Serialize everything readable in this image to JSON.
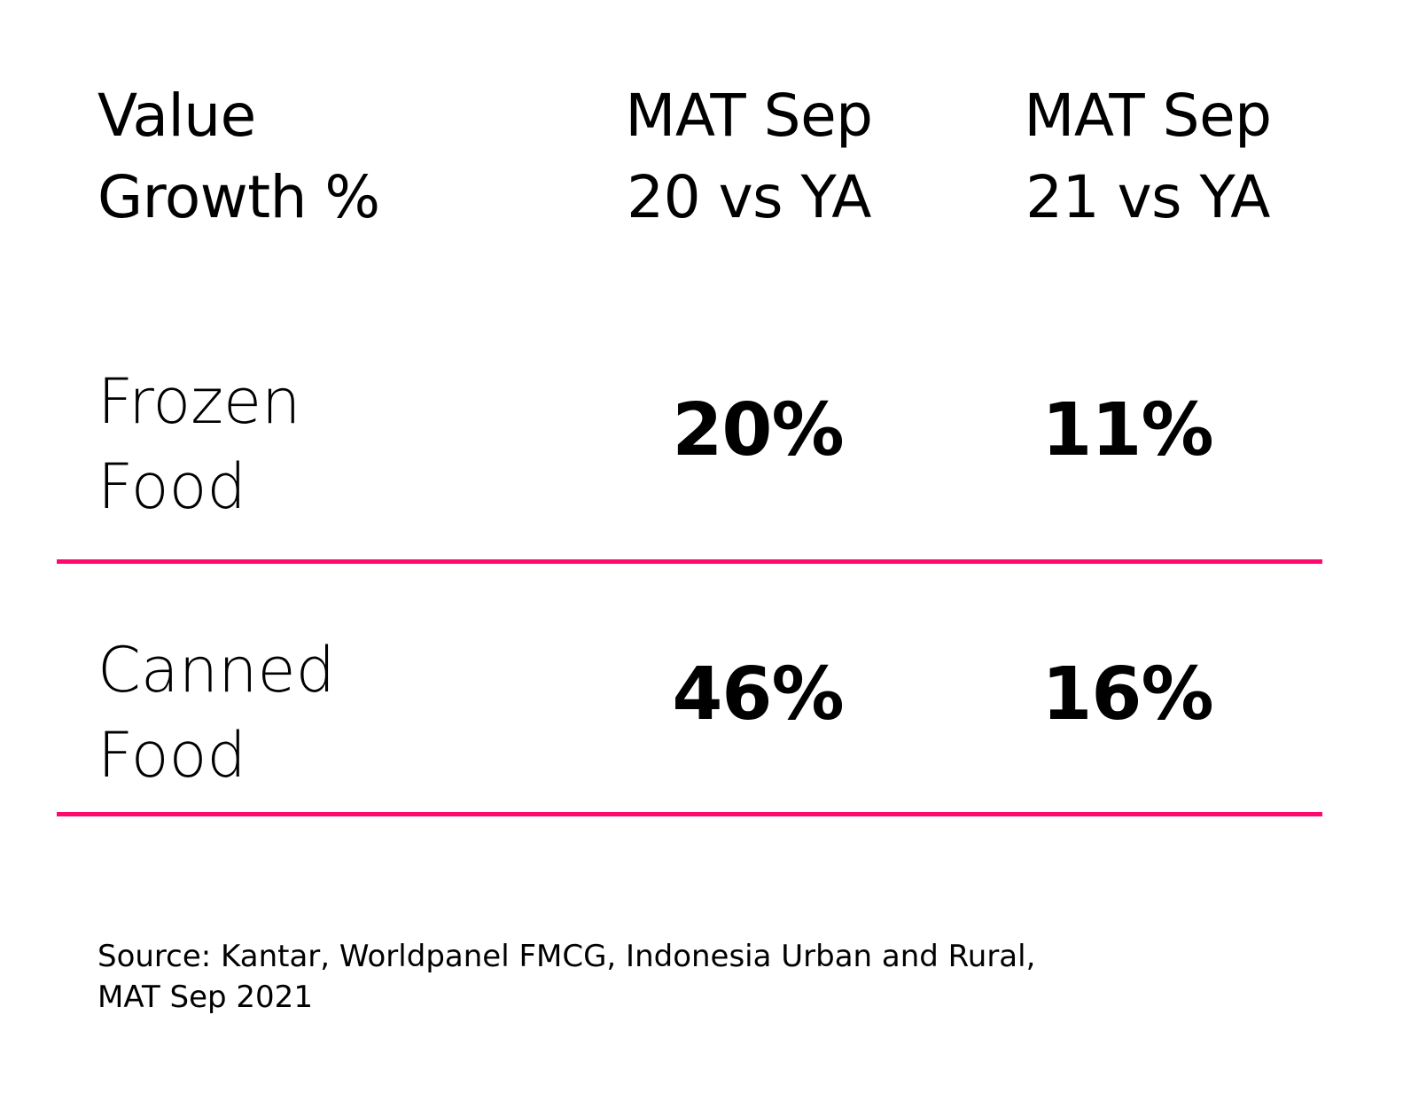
{
  "colors": {
    "accent": "#ff0a6c",
    "text": "#000000",
    "background": "#ffffff"
  },
  "header": {
    "label_line1": "Value",
    "label_line2": "Growth %",
    "col1_line1": "MAT Sep",
    "col1_line2": "20 vs YA",
    "col2_line1": "MAT Sep",
    "col2_line2": "21 vs YA"
  },
  "rows": [
    {
      "label_line1": "Frozen",
      "label_line2": "Food",
      "col1": "20%",
      "col2": "11%"
    },
    {
      "label_line1": "Canned",
      "label_line2": "Food",
      "col1": "46%",
      "col2": "16%"
    }
  ],
  "source": {
    "line1": "Source: Kantar, Worldpanel FMCG, Indonesia Urban and Rural,",
    "line2": "MAT Sep 2021"
  },
  "chart_data": {
    "type": "table",
    "columns": [
      "Value Growth %",
      "MAT Sep 20 vs YA",
      "MAT Sep 21 vs YA"
    ],
    "rows": [
      [
        "Frozen Food",
        "20%",
        "11%"
      ],
      [
        "Canned Food",
        "46%",
        "16%"
      ]
    ],
    "values": [
      [
        20,
        11
      ],
      [
        46,
        16
      ]
    ]
  }
}
